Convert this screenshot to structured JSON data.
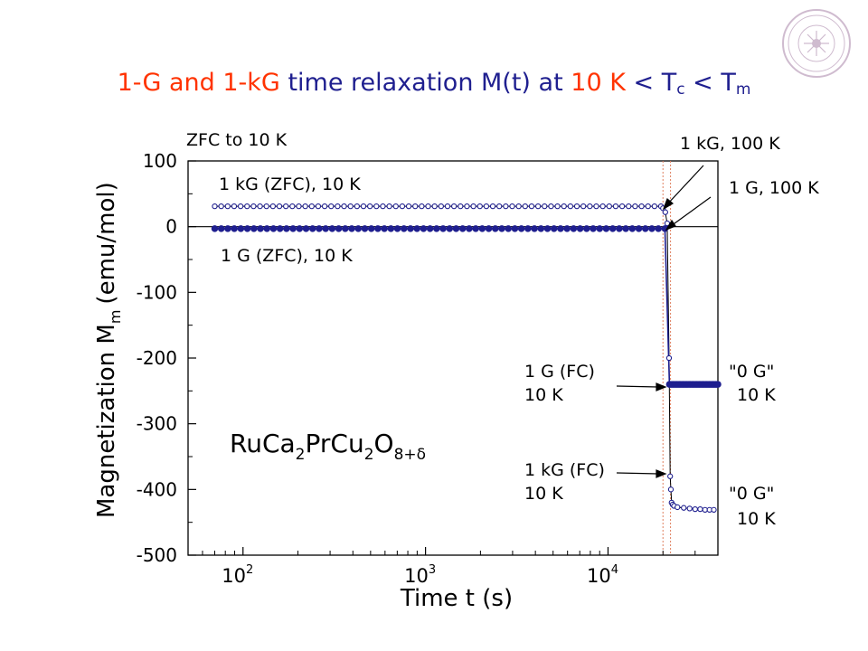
{
  "slide": {
    "title": {
      "part1": "1-G and 1-kG",
      "part2": " time relaxation M(t) at ",
      "part3": "10 K",
      "part4": " < T",
      "sub_c": "c",
      "part5": " < T",
      "sub_m": "m",
      "color_orange": "#ff3300",
      "color_blue": "#1f1f8f"
    },
    "logo_name": "university-seal"
  },
  "chart_data": {
    "type": "scatter",
    "title": "",
    "xlabel": "Time t (s)",
    "ylabel_main": "Magnetization  M",
    "ylabel_sub": "m",
    "ylabel_unit": "(emu/mol)",
    "x_scale": "log",
    "xlim": [
      50,
      40000
    ],
    "ylim": [
      -500,
      100
    ],
    "yticks": [
      "100",
      "0",
      "-100",
      "-200",
      "-300",
      "-400",
      "-500"
    ],
    "xtick_base": "10",
    "xtick_exps": [
      "2",
      "3",
      "4"
    ],
    "grid": false,
    "legend": "none",
    "zero_line": true,
    "field_change_times": [
      20000,
      22000
    ],
    "series": [
      {
        "label": "1 kG (ZFC), 10 K",
        "marker": "open-circle",
        "segments": [
          {
            "x_start": 70,
            "x_end": 19500,
            "y": 31,
            "count": 70
          },
          {
            "points": [
              [
                20000,
                28
              ],
              [
                20600,
                22
              ],
              [
                21100,
                5
              ]
            ]
          },
          {
            "points": [
              [
                21600,
                -200
              ],
              [
                21900,
                -380
              ],
              [
                22100,
                -400
              ],
              [
                22300,
                -420
              ],
              [
                22600,
                -423
              ],
              [
                23000,
                -425
              ],
              [
                24000,
                -427
              ],
              [
                26000,
                -428
              ],
              [
                28000,
                -429
              ],
              [
                30000,
                -430
              ],
              [
                32000,
                -430
              ],
              [
                34000,
                -431
              ],
              [
                36000,
                -431
              ],
              [
                38000,
                -431
              ]
            ]
          }
        ]
      },
      {
        "label": "1 G (ZFC), 10 K",
        "marker": "filled-circle",
        "segments": [
          {
            "x_start": 70,
            "x_end": 20500,
            "y": -3,
            "count": 70
          },
          {
            "x_start": 21700,
            "x_end": 40000,
            "y": -240,
            "count": 40
          }
        ]
      }
    ],
    "annotations": {
      "zfc_to_10k": "ZFC to 10 K",
      "kg100": "1 kG, 100 K",
      "g100": "1 G, 100 K",
      "kg_zfc": "1 kG (ZFC), 10 K",
      "g_zfc": "1 G (ZFC), 10 K",
      "g_fc_1": "1 G (FC)",
      "g_fc_2": "10 K",
      "zero_g_1": "\"0 G\"",
      "zero_g_2": "10 K",
      "kg_fc_1": "1 kG (FC)",
      "kg_fc_2": "10 K",
      "zero_g_3": "\"0 G\"",
      "zero_g_4": "10 K",
      "compound": {
        "p1": "RuCa",
        "s1": "2",
        "p2": "PrCu",
        "s2": "2",
        "p3": "O",
        "s3": "8+δ"
      }
    },
    "colors": {
      "open_series": "#1f1f8f",
      "filled_series": "#1f1f8f",
      "change_lines": "#e08060",
      "axis": "#000000"
    }
  }
}
